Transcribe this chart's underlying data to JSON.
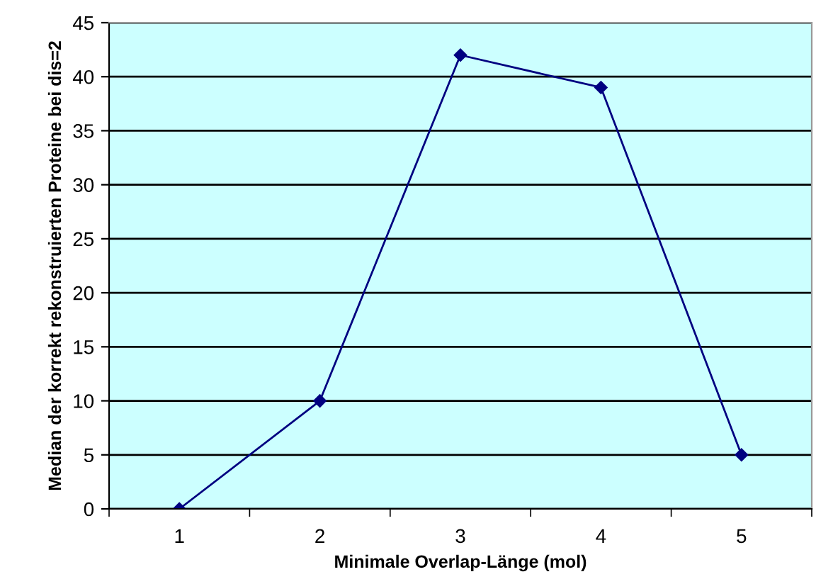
{
  "chart_data": {
    "type": "line",
    "xlabel": "Minimale Overlap-Länge (mol)",
    "ylabel": "Median der korrekt rekonstruierten Proteine bei dis=2",
    "categories": [
      "1",
      "2",
      "3",
      "4",
      "5"
    ],
    "series": [
      {
        "color": "#000080",
        "values": [
          0,
          10,
          42,
          39,
          5
        ]
      }
    ],
    "ylim": [
      0,
      45
    ],
    "yticks": [
      0,
      5,
      10,
      15,
      20,
      25,
      30,
      35,
      40,
      45
    ],
    "grid": "y",
    "marker": "diamond",
    "line_style": "solid"
  }
}
